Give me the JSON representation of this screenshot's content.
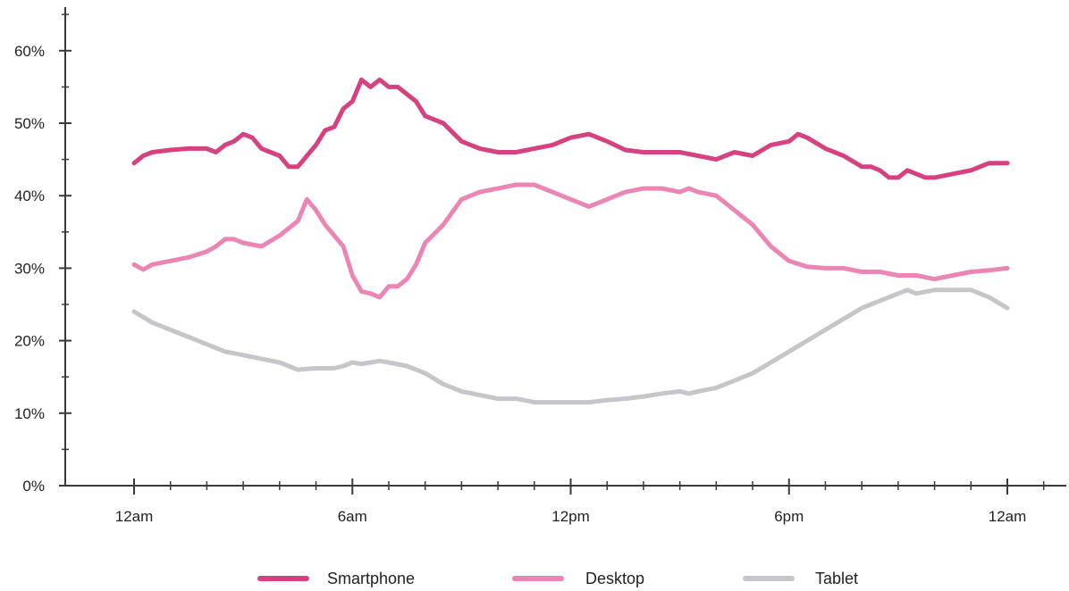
{
  "chart_data": {
    "type": "line",
    "title": "",
    "xlabel": "",
    "ylabel": "",
    "y_unit": "%",
    "ylim": [
      0,
      65
    ],
    "xlim": [
      0,
      24
    ],
    "y_ticks": [
      0,
      10,
      20,
      30,
      40,
      50,
      60
    ],
    "y_tick_labels": [
      "0%",
      "10%",
      "20%",
      "30%",
      "40%",
      "50%",
      "60%"
    ],
    "x_ticks": [
      0,
      6,
      12,
      18,
      24
    ],
    "x_tick_labels": [
      "12am",
      "6am",
      "12pm",
      "6pm",
      "12am"
    ],
    "grid": false,
    "legend_position": "bottom",
    "series": [
      {
        "name": "Smartphone",
        "color": "#d6417f",
        "x": [
          0,
          0.25,
          0.5,
          1,
          1.5,
          2,
          2.25,
          2.5,
          2.75,
          3,
          3.25,
          3.5,
          3.75,
          4,
          4.25,
          4.5,
          4.75,
          5,
          5.25,
          5.5,
          5.75,
          6,
          6.25,
          6.5,
          6.75,
          7,
          7.25,
          7.5,
          7.75,
          8,
          8.5,
          9,
          9.5,
          10,
          10.5,
          11,
          11.5,
          12,
          12.5,
          13,
          13.5,
          14,
          14.5,
          15,
          15.5,
          16,
          16.25,
          16.5,
          17,
          17.5,
          18,
          18.25,
          18.5,
          19,
          19.5,
          20,
          20.25,
          20.5,
          20.75,
          21,
          21.25,
          21.5,
          21.75,
          22,
          22.5,
          23,
          23.5,
          24
        ],
        "values": [
          44.5,
          45.5,
          46,
          46.3,
          46.5,
          46.5,
          46,
          47,
          47.5,
          48.5,
          48,
          46.5,
          46,
          45.5,
          44,
          44,
          45.5,
          47,
          49,
          49.5,
          52,
          53,
          56,
          55,
          56,
          55,
          55,
          54,
          53,
          51,
          50,
          47.5,
          46.5,
          46,
          46,
          46.5,
          47,
          48,
          48.5,
          47.5,
          46.3,
          46,
          46,
          46,
          45.5,
          45,
          45.5,
          46,
          45.5,
          47,
          47.5,
          48.5,
          48,
          46.5,
          45.5,
          44,
          44,
          43.5,
          42.5,
          42.5,
          43.5,
          43,
          42.5,
          42.5,
          43,
          43.5,
          44.5,
          44.5
        ]
      },
      {
        "name": "Desktop",
        "color": "#eb86b4",
        "x": [
          0,
          0.25,
          0.5,
          1,
          1.5,
          2,
          2.25,
          2.5,
          2.75,
          3,
          3.5,
          4,
          4.25,
          4.5,
          4.75,
          5,
          5.25,
          5.5,
          5.75,
          6,
          6.25,
          6.5,
          6.75,
          7,
          7.25,
          7.5,
          7.75,
          8,
          8.5,
          9,
          9.5,
          10,
          10.5,
          11,
          11.5,
          12,
          12.5,
          13,
          13.5,
          14,
          14.5,
          15,
          15.25,
          15.5,
          16,
          16.5,
          17,
          17.5,
          18,
          18.5,
          19,
          19.5,
          20,
          20.5,
          21,
          21.5,
          22,
          22.5,
          23,
          23.5,
          24
        ],
        "values": [
          30.5,
          29.8,
          30.5,
          31,
          31.5,
          32.3,
          33,
          34,
          34,
          33.5,
          33,
          34.5,
          35.5,
          36.5,
          39.5,
          38,
          36,
          34.5,
          33,
          29,
          26.8,
          26.5,
          26,
          27.5,
          27.5,
          28.5,
          30.5,
          33.5,
          36,
          39.5,
          40.5,
          41,
          41.5,
          41.5,
          40.5,
          39.5,
          38.5,
          39.5,
          40.5,
          41,
          41,
          40.5,
          41,
          40.5,
          40,
          38,
          36,
          33,
          31,
          30.2,
          30,
          30,
          29.5,
          29.5,
          29,
          29,
          28.5,
          29,
          29.5,
          29.7,
          30
        ]
      },
      {
        "name": "Tablet",
        "color": "#c5c5ca",
        "x": [
          0,
          0.5,
          1,
          1.5,
          2,
          2.5,
          3,
          3.5,
          4,
          4.5,
          5,
          5.5,
          5.75,
          6,
          6.25,
          6.5,
          6.75,
          7,
          7.5,
          8,
          8.5,
          9,
          9.5,
          10,
          10.5,
          11,
          11.5,
          12,
          12.5,
          13,
          13.5,
          14,
          14.5,
          15,
          15.25,
          15.5,
          16,
          16.5,
          17,
          17.5,
          18,
          18.5,
          19,
          19.5,
          20,
          20.5,
          21,
          21.25,
          21.5,
          22,
          22.5,
          23,
          23.5,
          24
        ],
        "values": [
          24,
          22.5,
          21.5,
          20.5,
          19.5,
          18.5,
          18,
          17.5,
          17,
          16,
          16.2,
          16.2,
          16.5,
          17,
          16.8,
          17,
          17.2,
          17,
          16.5,
          15.5,
          14,
          13,
          12.5,
          12,
          12,
          11.5,
          11.5,
          11.5,
          11.5,
          11.8,
          12,
          12.3,
          12.7,
          13,
          12.7,
          13,
          13.5,
          14.5,
          15.5,
          17,
          18.5,
          20,
          21.5,
          23,
          24.5,
          25.5,
          26.5,
          27,
          26.5,
          27,
          27,
          27,
          26,
          24.5
        ]
      }
    ]
  }
}
